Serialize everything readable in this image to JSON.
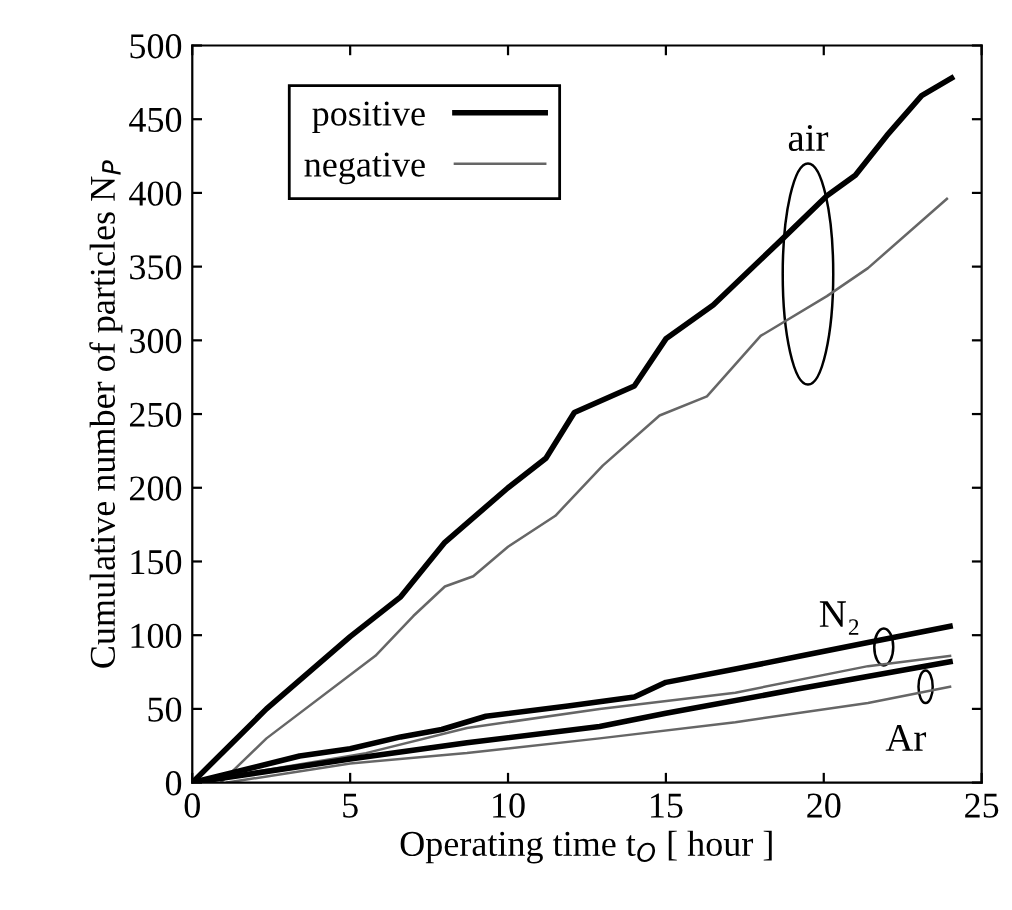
{
  "chart_data": {
    "type": "line",
    "xlabel": "Operating time t$_{O}$ [ hour ]",
    "ylabel": "Cumulative number of particles N$_{P}$",
    "xlim": [
      0,
      25
    ],
    "ylim": [
      0,
      500
    ],
    "xticks": [
      0,
      5,
      10,
      15,
      20,
      25
    ],
    "yticks": [
      0,
      50,
      100,
      150,
      200,
      250,
      300,
      350,
      400,
      450,
      500
    ],
    "grid": false,
    "legend": "top left",
    "marker": "none",
    "line_style": "solid",
    "series": [
      {
        "name": "positive",
        "color": "#000000",
        "x": [
          0,
          2.35,
          5,
          6.6,
          8,
          10,
          11.2,
          12.1,
          14,
          15,
          16.5,
          18.7,
          20.1,
          21,
          22,
          23.1,
          24.05
        ],
        "values": [
          0,
          50,
          99,
          126,
          163,
          200,
          220,
          251,
          269,
          301,
          324,
          369,
          398,
          412,
          439,
          466,
          478
        ]
      },
      {
        "name": "negative",
        "color": "#666666",
        "x": [
          0.9,
          2.35,
          5.8,
          7,
          8,
          8.9,
          10,
          11.5,
          13,
          14.8,
          16.3,
          18,
          20.1,
          21.4,
          23.9
        ],
        "values": [
          0,
          30,
          86,
          113,
          133,
          140,
          160,
          181,
          215,
          249,
          262,
          303,
          330,
          349,
          396
        ]
      },
      {
        "color": "#000000",
        "x": [
          0,
          3.4,
          5,
          6.6,
          7.9,
          9.3,
          11.9,
          14,
          15,
          17.2,
          19.3,
          21.4,
          24
        ],
        "values": [
          0,
          18,
          23,
          31,
          36,
          45,
          52,
          58,
          68,
          77,
          86,
          95,
          106
        ]
      },
      {
        "color": "#666666",
        "x": [
          0,
          5.5,
          8.7,
          12.9,
          17.2,
          21.4,
          24
        ],
        "values": [
          0,
          20,
          37,
          50,
          61,
          79,
          86
        ]
      },
      {
        "color": "#000000",
        "x": [
          0,
          5,
          8.7,
          12.9,
          15,
          19.3,
          24
        ],
        "values": [
          0,
          16,
          27,
          38,
          47,
          64,
          82
        ]
      },
      {
        "color": "#666666",
        "x": [
          1.1,
          5,
          8.7,
          12.9,
          17.2,
          21.4,
          24
        ],
        "values": [
          0,
          13,
          20,
          30,
          41,
          54,
          65
        ]
      }
    ],
    "annotations": [
      "air",
      "N₂",
      "Ar"
    ]
  }
}
